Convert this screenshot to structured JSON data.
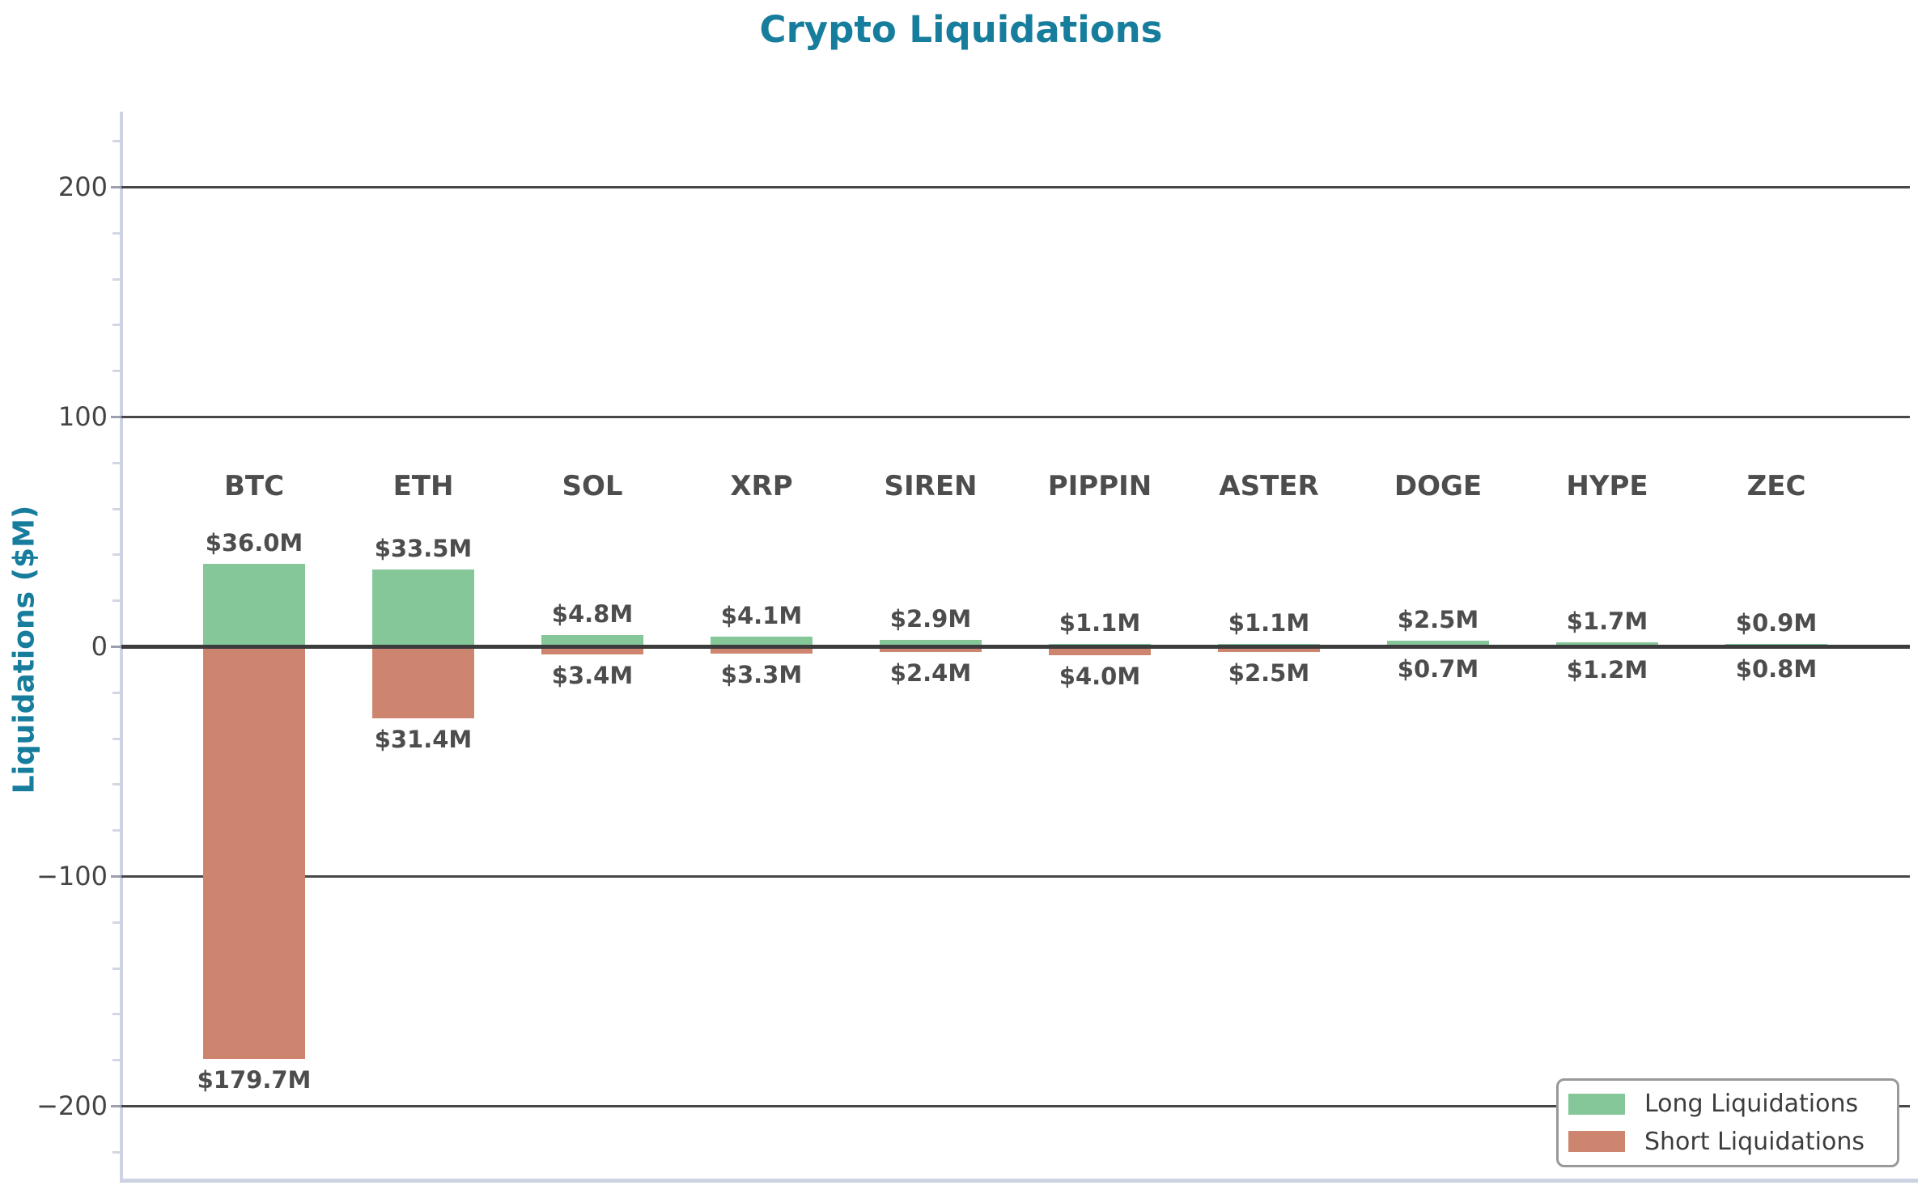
{
  "title": "Crypto Liquidations",
  "ylabel": "Liquidations ($M)",
  "colors": {
    "title": "#177d9c",
    "ylabel": "#177d9c",
    "long": "#86c799",
    "short": "#cd8570",
    "text_label": "#4d4d4d",
    "tick_label": "#444444",
    "grid": "#474747",
    "zero_line": "#3c3c3c",
    "spine": "#cdd3e2",
    "legend_border": "#999999"
  },
  "legend": {
    "long_label": "Long Liquidations",
    "short_label": "Short Liquidations"
  },
  "chart_data": {
    "type": "bar",
    "title": "Crypto Liquidations",
    "ylabel": "Liquidations ($M)",
    "categories": [
      "BTC",
      "ETH",
      "SOL",
      "XRP",
      "SIREN",
      "PIPPIN",
      "ASTER",
      "DOGE",
      "HYPE",
      "ZEC"
    ],
    "series": [
      {
        "name": "Long Liquidations",
        "values": [
          36.0,
          33.5,
          4.8,
          4.1,
          2.9,
          1.1,
          1.1,
          2.5,
          1.7,
          0.9
        ]
      },
      {
        "name": "Short Liquidations",
        "values": [
          -179.7,
          -31.4,
          -3.4,
          -3.3,
          -2.4,
          -4.0,
          -2.5,
          -0.7,
          -1.2,
          -0.8
        ]
      }
    ],
    "value_labels": {
      "long": [
        "$36.0M",
        "$33.5M",
        "$4.8M",
        "$4.1M",
        "$2.9M",
        "$1.1M",
        "$1.1M",
        "$2.5M",
        "$1.7M",
        "$0.9M"
      ],
      "short": [
        "$179.7M",
        "$31.4M",
        "$3.4M",
        "$3.3M",
        "$2.4M",
        "$4.0M",
        "$2.5M",
        "$0.7M",
        "$1.2M",
        "$0.8M"
      ]
    },
    "yticks": [
      200,
      100,
      0,
      -100,
      -200
    ],
    "ytick_labels": [
      "200",
      "100",
      "0",
      "−100",
      "−200"
    ],
    "minor_tick_step": 20,
    "ylim": [
      -233,
      233
    ],
    "grid": true,
    "legend_position": "lower right"
  }
}
